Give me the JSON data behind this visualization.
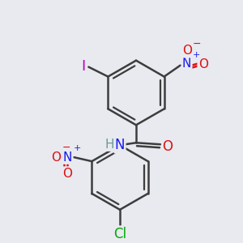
{
  "bg_color": "#e8eaf0",
  "bond_color": "#3d3d3d",
  "bond_width": 1.8,
  "atom_colors": {
    "C": "#3d3d3d",
    "H": "#6a9999",
    "N": "#1a1aee",
    "O": "#dd1111",
    "I": "#bb00bb",
    "Cl": "#00aa00"
  },
  "font_size": 11
}
